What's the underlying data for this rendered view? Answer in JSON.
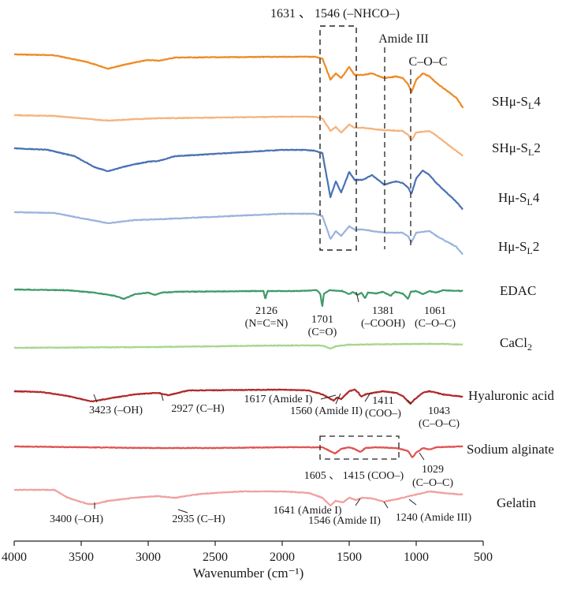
{
  "chart_data": {
    "type": "line",
    "title": "",
    "xlabel": "Wavenumber (cm⁻¹)",
    "ylabel": "",
    "xlim": [
      4000,
      500
    ],
    "x_ticks": [
      "4000",
      "3500",
      "3000",
      "2500",
      "2000",
      "1500",
      "1000",
      "500"
    ],
    "x_tick_values": [
      4000,
      3500,
      3000,
      2500,
      2000,
      1500,
      1000,
      500
    ],
    "grid": false,
    "legend": "none",
    "series": [
      {
        "name": "SHμ-SL4",
        "label_parts": [
          "SHμ-S",
          "L",
          "4"
        ],
        "color": "#ee8a22",
        "baseline": 69,
        "points": [
          [
            4000,
            0
          ],
          [
            3700,
            1
          ],
          [
            3450,
            10
          ],
          [
            3300,
            18
          ],
          [
            3150,
            12
          ],
          [
            3000,
            7
          ],
          [
            2920,
            8
          ],
          [
            2800,
            4
          ],
          [
            2000,
            3
          ],
          [
            1850,
            3
          ],
          [
            1760,
            3
          ],
          [
            1700,
            5
          ],
          [
            1640,
            32
          ],
          [
            1600,
            24
          ],
          [
            1560,
            30
          ],
          [
            1500,
            16
          ],
          [
            1460,
            26
          ],
          [
            1400,
            26
          ],
          [
            1330,
            24
          ],
          [
            1240,
            30
          ],
          [
            1150,
            28
          ],
          [
            1100,
            30
          ],
          [
            1060,
            38
          ],
          [
            1035,
            48
          ],
          [
            1000,
            32
          ],
          [
            950,
            24
          ],
          [
            900,
            28
          ],
          [
            850,
            36
          ],
          [
            700,
            55
          ],
          [
            650,
            68
          ]
        ]
      },
      {
        "name": "SHμ-SL2",
        "label_parts": [
          "SHμ-S",
          "L",
          "2"
        ],
        "color": "#f5b37c",
        "baseline": 146,
        "points": [
          [
            4000,
            0
          ],
          [
            3700,
            1
          ],
          [
            3300,
            7
          ],
          [
            3100,
            5
          ],
          [
            2920,
            4
          ],
          [
            2000,
            2
          ],
          [
            1760,
            2
          ],
          [
            1700,
            4
          ],
          [
            1640,
            20
          ],
          [
            1600,
            15
          ],
          [
            1560,
            22
          ],
          [
            1500,
            12
          ],
          [
            1460,
            16
          ],
          [
            1400,
            16
          ],
          [
            1240,
            19
          ],
          [
            1100,
            20
          ],
          [
            1060,
            25
          ],
          [
            1035,
            32
          ],
          [
            1000,
            22
          ],
          [
            900,
            20
          ],
          [
            850,
            26
          ],
          [
            650,
            52
          ]
        ]
      },
      {
        "name": "Hμ-SL4",
        "label_parts": [
          "Hμ-S",
          "L",
          "4"
        ],
        "color": "#4a72b4",
        "baseline": 188,
        "points": [
          [
            4000,
            0
          ],
          [
            3750,
            2
          ],
          [
            3550,
            10
          ],
          [
            3400,
            24
          ],
          [
            3300,
            29
          ],
          [
            3150,
            22
          ],
          [
            3000,
            17
          ],
          [
            2920,
            16
          ],
          [
            2800,
            10
          ],
          [
            2000,
            2
          ],
          [
            1850,
            2
          ],
          [
            1760,
            3
          ],
          [
            1700,
            6
          ],
          [
            1640,
            62
          ],
          [
            1600,
            42
          ],
          [
            1560,
            56
          ],
          [
            1500,
            30
          ],
          [
            1460,
            40
          ],
          [
            1400,
            40
          ],
          [
            1330,
            34
          ],
          [
            1240,
            46
          ],
          [
            1150,
            42
          ],
          [
            1100,
            44
          ],
          [
            1060,
            50
          ],
          [
            1035,
            58
          ],
          [
            1000,
            38
          ],
          [
            950,
            28
          ],
          [
            900,
            34
          ],
          [
            850,
            44
          ],
          [
            700,
            68
          ],
          [
            650,
            78
          ]
        ]
      },
      {
        "name": "Hμ-SL2",
        "label_parts": [
          "Hμ-S",
          "L",
          "2"
        ],
        "color": "#9bb3dd",
        "baseline": 269,
        "points": [
          [
            4000,
            0
          ],
          [
            3700,
            1
          ],
          [
            3300,
            14
          ],
          [
            3100,
            10
          ],
          [
            2920,
            9
          ],
          [
            2000,
            2
          ],
          [
            1760,
            2
          ],
          [
            1700,
            5
          ],
          [
            1640,
            34
          ],
          [
            1600,
            24
          ],
          [
            1560,
            30
          ],
          [
            1500,
            18
          ],
          [
            1460,
            22
          ],
          [
            1400,
            22
          ],
          [
            1240,
            26
          ],
          [
            1100,
            26
          ],
          [
            1060,
            31
          ],
          [
            1035,
            38
          ],
          [
            1000,
            26
          ],
          [
            900,
            24
          ],
          [
            850,
            30
          ],
          [
            700,
            44
          ],
          [
            650,
            54
          ]
        ]
      },
      {
        "name": "EDAC",
        "label_parts": [
          "EDAC",
          "",
          ""
        ],
        "color": "#3f9a68",
        "baseline": 367,
        "points": [
          [
            4000,
            0
          ],
          [
            3600,
            1
          ],
          [
            3400,
            4
          ],
          [
            3250,
            8
          ],
          [
            3180,
            12
          ],
          [
            3100,
            6
          ],
          [
            3000,
            4
          ],
          [
            2950,
            7
          ],
          [
            2900,
            4
          ],
          [
            2800,
            3
          ],
          [
            2200,
            2
          ],
          [
            2140,
            2
          ],
          [
            2126,
            12
          ],
          [
            2110,
            2
          ],
          [
            1900,
            2
          ],
          [
            1740,
            1
          ],
          [
            1715,
            6
          ],
          [
            1701,
            22
          ],
          [
            1690,
            6
          ],
          [
            1650,
            1
          ],
          [
            1550,
            2
          ],
          [
            1500,
            6
          ],
          [
            1470,
            3
          ],
          [
            1440,
            7
          ],
          [
            1410,
            4
          ],
          [
            1381,
            11
          ],
          [
            1360,
            4
          ],
          [
            1300,
            5
          ],
          [
            1250,
            3
          ],
          [
            1190,
            8
          ],
          [
            1160,
            3
          ],
          [
            1100,
            5
          ],
          [
            1061,
            12
          ],
          [
            1040,
            3
          ],
          [
            1000,
            2
          ],
          [
            950,
            6
          ],
          [
            900,
            2
          ],
          [
            850,
            4
          ],
          [
            800,
            1
          ],
          [
            650,
            2
          ]
        ]
      },
      {
        "name": "CaCl2",
        "label_parts": [
          "CaCl",
          "2",
          ""
        ],
        "color": "#a6d68c",
        "baseline": 441,
        "points": [
          [
            4000,
            0
          ],
          [
            3000,
            -1
          ],
          [
            2000,
            -3
          ],
          [
            1700,
            -3
          ],
          [
            1640,
            1
          ],
          [
            1600,
            -2
          ],
          [
            1500,
            -4
          ],
          [
            1000,
            -5
          ],
          [
            800,
            -5
          ],
          [
            650,
            -4
          ]
        ]
      },
      {
        "name": "Hyaluronic acid",
        "label_parts": [
          "Hyaluronic acid",
          "",
          ""
        ],
        "color": "#b02a2a",
        "baseline": 496,
        "points": [
          [
            4000,
            0
          ],
          [
            3800,
            1
          ],
          [
            3600,
            6
          ],
          [
            3423,
            13
          ],
          [
            3250,
            8
          ],
          [
            3100,
            4
          ],
          [
            2927,
            2
          ],
          [
            2850,
            5
          ],
          [
            2700,
            -1
          ],
          [
            2000,
            -2
          ],
          [
            1800,
            -1
          ],
          [
            1700,
            4
          ],
          [
            1617,
            12
          ],
          [
            1590,
            8
          ],
          [
            1560,
            10
          ],
          [
            1500,
            0
          ],
          [
            1460,
            -2
          ],
          [
            1430,
            2
          ],
          [
            1411,
            7
          ],
          [
            1380,
            4
          ],
          [
            1320,
            2
          ],
          [
            1250,
            0
          ],
          [
            1150,
            2
          ],
          [
            1100,
            6
          ],
          [
            1043,
            16
          ],
          [
            1010,
            10
          ],
          [
            950,
            2
          ],
          [
            900,
            0
          ],
          [
            800,
            4
          ],
          [
            650,
            7
          ]
        ]
      },
      {
        "name": "Sodium alginate",
        "label_parts": [
          "Sodium alginate",
          "",
          ""
        ],
        "color": "#e05252",
        "baseline": 566,
        "points": [
          [
            4000,
            0
          ],
          [
            3500,
            1
          ],
          [
            3000,
            2
          ],
          [
            2500,
            2
          ],
          [
            2000,
            1
          ],
          [
            1700,
            1
          ],
          [
            1605,
            9
          ],
          [
            1560,
            3
          ],
          [
            1500,
            1
          ],
          [
            1450,
            4
          ],
          [
            1415,
            7
          ],
          [
            1380,
            2
          ],
          [
            1300,
            1
          ],
          [
            1150,
            2
          ],
          [
            1100,
            4
          ],
          [
            1060,
            6
          ],
          [
            1029,
            14
          ],
          [
            1000,
            8
          ],
          [
            950,
            2
          ],
          [
            900,
            4
          ],
          [
            850,
            1
          ],
          [
            650,
            0
          ]
        ]
      },
      {
        "name": "Gelatin",
        "label_parts": [
          "Gelatin",
          "",
          ""
        ],
        "color": "#f0a0a0",
        "baseline": 621,
        "points": [
          [
            4000,
            0
          ],
          [
            3700,
            0
          ],
          [
            3600,
            10
          ],
          [
            3450,
            18
          ],
          [
            3400,
            18
          ],
          [
            3300,
            14
          ],
          [
            3100,
            10
          ],
          [
            2935,
            8
          ],
          [
            2800,
            10
          ],
          [
            2600,
            5
          ],
          [
            2300,
            2
          ],
          [
            2000,
            2
          ],
          [
            1800,
            4
          ],
          [
            1700,
            10
          ],
          [
            1641,
            20
          ],
          [
            1600,
            14
          ],
          [
            1546,
            16
          ],
          [
            1500,
            10
          ],
          [
            1450,
            13
          ],
          [
            1400,
            10
          ],
          [
            1330,
            11
          ],
          [
            1240,
            15
          ],
          [
            1150,
            12
          ],
          [
            1000,
            6
          ],
          [
            900,
            2
          ],
          [
            800,
            4
          ],
          [
            650,
            6
          ]
        ]
      }
    ],
    "trace_labels": [
      {
        "main": "SHμ-S",
        "sub": "L",
        "tail": "4"
      },
      {
        "main": "SHμ-S",
        "sub": "L",
        "tail": "2"
      },
      {
        "main": "Hμ-S",
        "sub": "L",
        "tail": "4"
      },
      {
        "main": "Hμ-S",
        "sub": "L",
        "tail": "2"
      },
      {
        "main": "EDAC",
        "sub": "",
        "tail": ""
      },
      {
        "main": "CaCl",
        "sub": "2",
        "tail": ""
      },
      {
        "main": "Hyaluronic acid",
        "sub": "",
        "tail": ""
      },
      {
        "main": "Sodium alginate",
        "sub": "",
        "tail": ""
      },
      {
        "main": "Gelatin",
        "sub": "",
        "tail": ""
      }
    ],
    "top_annotations": {
      "nhco": "1631 、 1546 (–NHCO–)",
      "amide3": "Amide III",
      "coc": "C–O–C"
    },
    "peak_annotations": {
      "edac_2126": "2126",
      "edac_ncn": "(N=C=N)",
      "edac_1701": "1701",
      "edac_co": "(C=O)",
      "edac_1381": "1381",
      "edac_cooh": "(–COOH)",
      "edac_1061": "1061",
      "edac_coc": "(C–O–C)",
      "ha_1617": "1617 (Amide I)",
      "ha_1411": "1411",
      "ha_3423": "3423 (–OH)",
      "ha_2927": "2927 (C–H)",
      "ha_1560": "1560 (Amide II)",
      "ha_coo": "(COO–)",
      "ha_1043": "1043",
      "ha_coc": "(C–O–C)",
      "sa_1029": "1029",
      "sa_1605": "1605 、 1415 (COO–)",
      "sa_coc": "(C–O–C)",
      "gel_1641": "1641 (Amide I)",
      "gel_3400": "3400 (–OH)",
      "gel_2935": "2935 (C–H)",
      "gel_1546": "1546 (Amide II)",
      "gel_1240": "1240 (Amide III)"
    }
  }
}
